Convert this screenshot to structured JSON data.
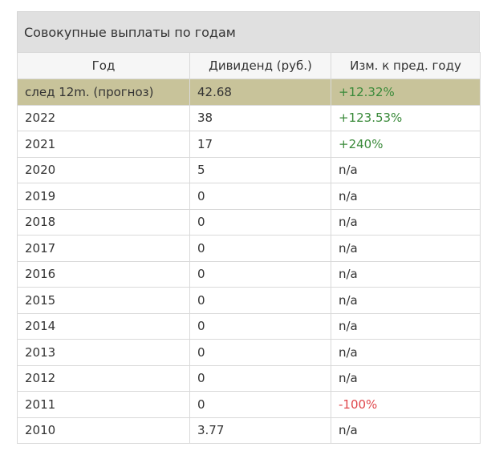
{
  "title": "Совокупные выплаты по годам",
  "columns": [
    "Год",
    "Дивиденд (руб.)",
    "Изм. к пред. году"
  ],
  "rows": [
    {
      "year": "след 12m. (прогноз)",
      "dividend": "42.68",
      "change": "+12.32%",
      "trend": "pos",
      "forecast": true
    },
    {
      "year": "2022",
      "dividend": "38",
      "change": "+123.53%",
      "trend": "pos"
    },
    {
      "year": "2021",
      "dividend": "17",
      "change": "+240%",
      "trend": "pos"
    },
    {
      "year": "2020",
      "dividend": "5",
      "change": "n/a",
      "trend": "neu"
    },
    {
      "year": "2019",
      "dividend": "0",
      "change": "n/a",
      "trend": "neu"
    },
    {
      "year": "2018",
      "dividend": "0",
      "change": "n/a",
      "trend": "neu"
    },
    {
      "year": "2017",
      "dividend": "0",
      "change": "n/a",
      "trend": "neu"
    },
    {
      "year": "2016",
      "dividend": "0",
      "change": "n/a",
      "trend": "neu"
    },
    {
      "year": "2015",
      "dividend": "0",
      "change": "n/a",
      "trend": "neu"
    },
    {
      "year": "2014",
      "dividend": "0",
      "change": "n/a",
      "trend": "neu"
    },
    {
      "year": "2013",
      "dividend": "0",
      "change": "n/a",
      "trend": "neu"
    },
    {
      "year": "2012",
      "dividend": "0",
      "change": "n/a",
      "trend": "neu"
    },
    {
      "year": "2011",
      "dividend": "0",
      "change": "-100%",
      "trend": "neg"
    },
    {
      "year": "2010",
      "dividend": "3.77",
      "change": "n/a",
      "trend": "neu"
    }
  ],
  "colors": {
    "forecast_row": "#c8c39a",
    "positive": "#3a8a3a",
    "negative": "#e0484d",
    "title_bar": "#e0e0e0"
  }
}
